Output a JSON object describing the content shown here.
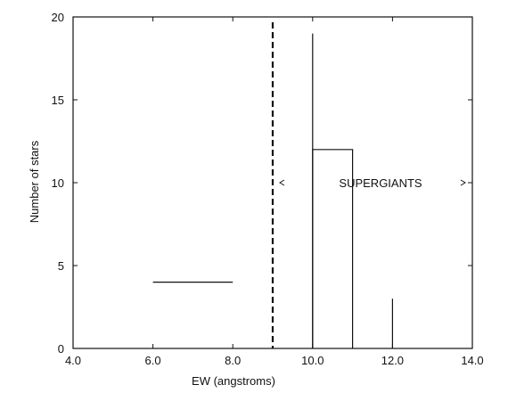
{
  "chart_data": {
    "type": "bar",
    "xlabel": "EW (angstroms)",
    "ylabel": "Number of stars",
    "xlim": [
      4.0,
      14.0
    ],
    "ylim": [
      0,
      20
    ],
    "x_ticks": [
      "4.0",
      "6.0",
      "8.0",
      "10.0",
      "12.0",
      "14.0"
    ],
    "y_ticks": [
      "0",
      "5",
      "10",
      "15",
      "20"
    ],
    "grid": false,
    "legend": "none",
    "bars": [
      {
        "x0": 6.0,
        "x1": 8.0,
        "value": 4
      },
      {
        "x0": 10.0,
        "x1": 10.0,
        "value": 19
      },
      {
        "x0": 10.0,
        "x1": 11.0,
        "value": 12
      },
      {
        "x0": 12.0,
        "x1": 12.0,
        "value": 3
      }
    ],
    "threshold_line": {
      "x": 9.0,
      "style": "dashed"
    },
    "annotation": {
      "text": "SUPERGIANTS",
      "x": 11.5,
      "y": 10,
      "arrow_from": 9.0,
      "arrow_to": 14.0
    },
    "colors": {
      "axis": "#111111",
      "bars": "#111111"
    }
  }
}
